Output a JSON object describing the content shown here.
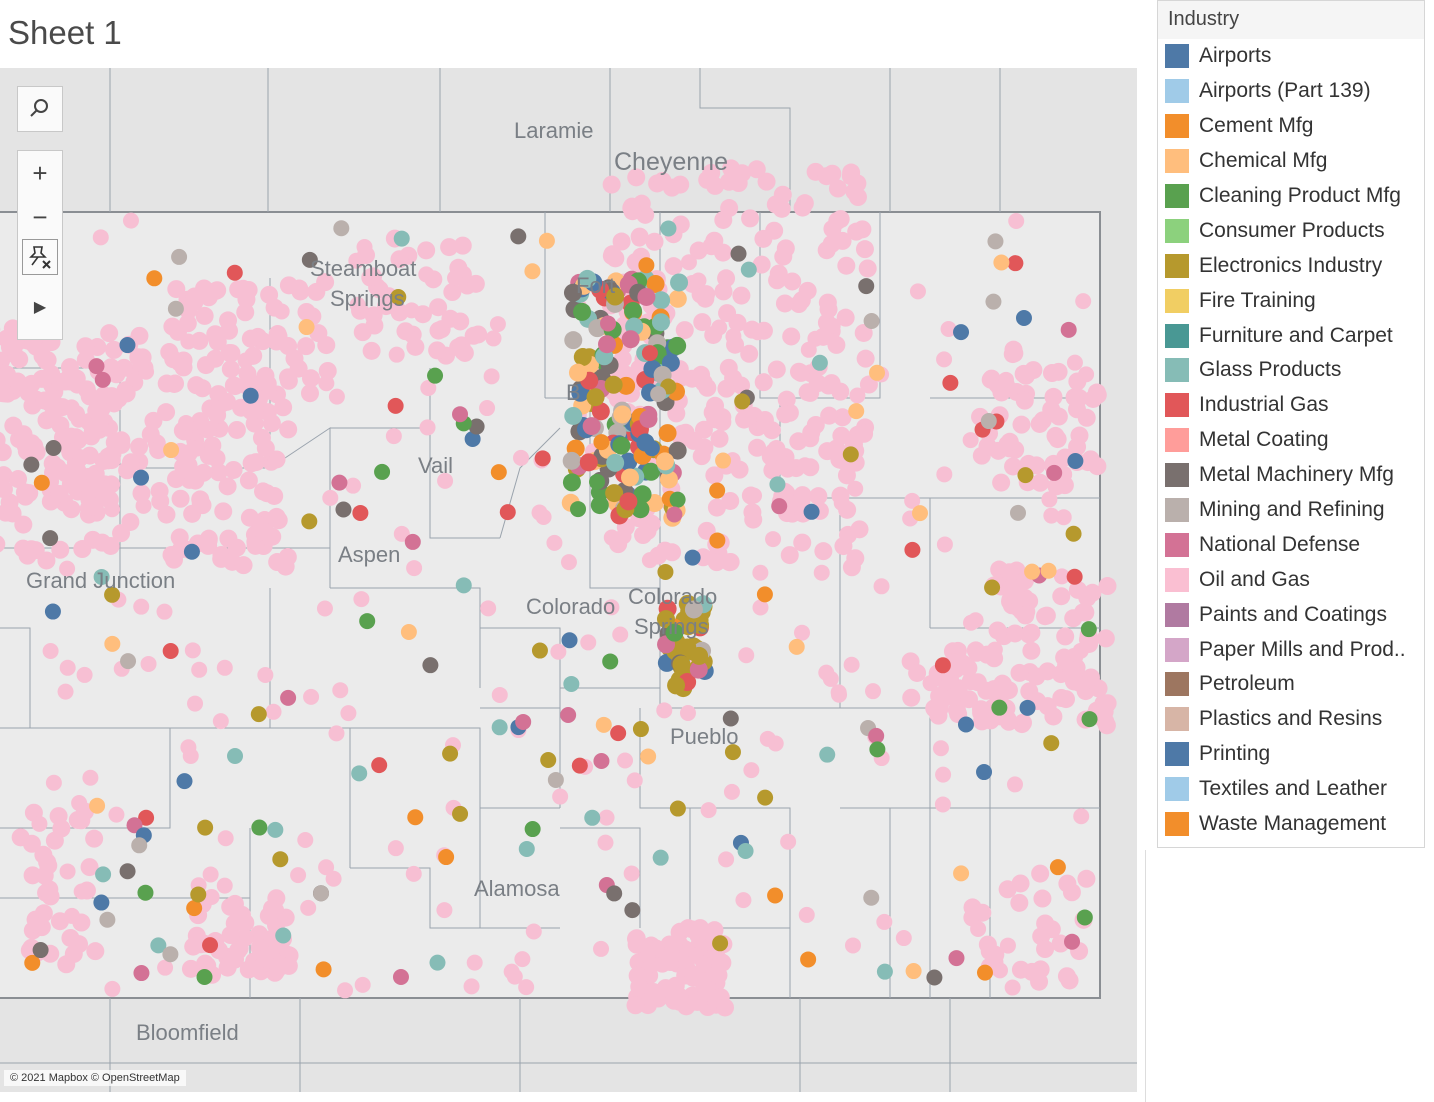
{
  "sheet": {
    "title": "Sheet 1"
  },
  "map": {
    "attribution": "© 2021 Mapbox © OpenStreetMap",
    "place_labels": {
      "laramie": "Laramie",
      "cheyenne": "Cheyenne",
      "steamboat_line1": "Steamboat",
      "steamboat_line2": "Springs",
      "fort_collins": "Fort",
      "boulder": "B",
      "vail": "Vail",
      "aspen": "Aspen",
      "grand_junction": "Grand Junction",
      "colorado_springs_1": "Colorado",
      "colorado_springs_2": "Colorado",
      "colorado_springs_3": "Springs",
      "pueblo": "Pueblo",
      "alamosa": "Alamosa",
      "bloomfield": "Bloomfield"
    },
    "tools": [
      "search-icon",
      "zoom-in-icon",
      "zoom-out-icon",
      "clear-pin-icon",
      "expand-arrow-icon"
    ]
  },
  "legend": {
    "title": "Industry",
    "items": [
      {
        "label": "Airports",
        "color": "#4e79a7"
      },
      {
        "label": "Airports (Part 139)",
        "color": "#a0cbe8"
      },
      {
        "label": "Cement Mfg",
        "color": "#f28e2b"
      },
      {
        "label": "Chemical Mfg",
        "color": "#ffbe7d"
      },
      {
        "label": "Cleaning Product Mfg",
        "color": "#59a14f"
      },
      {
        "label": "Consumer Products",
        "color": "#8cd17d"
      },
      {
        "label": "Electronics Industry",
        "color": "#b6992d"
      },
      {
        "label": "Fire Training",
        "color": "#f1ce63"
      },
      {
        "label": "Furniture and Carpet",
        "color": "#499894"
      },
      {
        "label": "Glass Products",
        "color": "#86bcb6"
      },
      {
        "label": "Industrial Gas",
        "color": "#e15759"
      },
      {
        "label": "Metal Coating",
        "color": "#ff9d9a"
      },
      {
        "label": "Metal Machinery Mfg",
        "color": "#79706e"
      },
      {
        "label": "Mining and Refining",
        "color": "#bab0ac"
      },
      {
        "label": "National Defense",
        "color": "#d37295"
      },
      {
        "label": "Oil and Gas",
        "color": "#fabfd2"
      },
      {
        "label": "Paints and Coatings",
        "color": "#b07aa1"
      },
      {
        "label": "Paper Mills and Prod..",
        "color": "#d4a6c8"
      },
      {
        "label": "Petroleum",
        "color": "#9d7660"
      },
      {
        "label": "Plastics and Resins",
        "color": "#d7b5a6"
      },
      {
        "label": "Printing",
        "color": "#4e79a7"
      },
      {
        "label": "Textiles and Leather",
        "color": "#a0cbe8"
      },
      {
        "label": "Waste Management",
        "color": "#f28e2b"
      }
    ]
  }
}
